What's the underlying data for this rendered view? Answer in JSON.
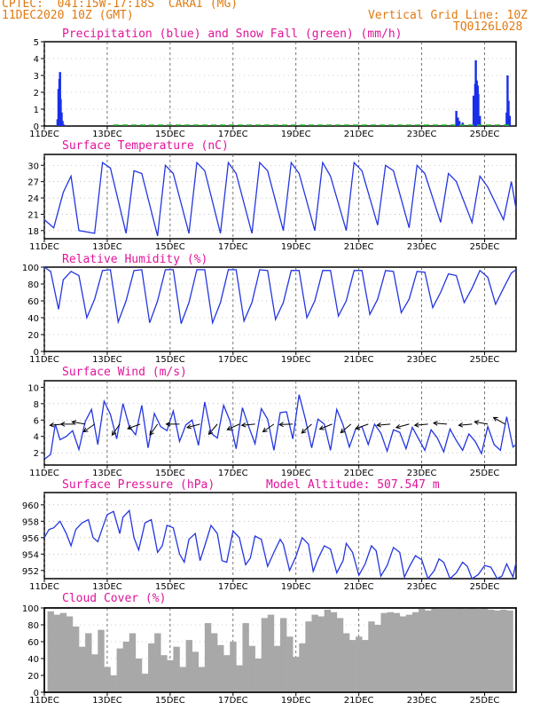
{
  "header": {
    "station": "CPTEC:  041:15W-17:18S  CARAI (MG)",
    "run": "11DEC2020 10Z (GMT)",
    "grid_note": "Vertical Grid Line: 10Z",
    "code": "TQ0126L028"
  },
  "colors": {
    "header": "#e07a10",
    "title": "#e0149a",
    "precip": "#1a2ee8",
    "snow": "#2ab52a",
    "line": "#2436e0",
    "wind_arrow": "#000000",
    "cloud": "#a8a8a8"
  },
  "chart_data": [
    {
      "type": "bar",
      "title": "Precipitation (blue) and Snow Fall (green) (mm/h)",
      "x_ticks": [
        "11DEC",
        "13DEC",
        "15DEC",
        "17DEC",
        "19DEC",
        "21DEC",
        "23DEC",
        "25DEC"
      ],
      "y_ticks": [
        "0",
        "1",
        "2",
        "3",
        "4",
        "5"
      ],
      "ylim": [
        0,
        5
      ],
      "series": [
        {
          "name": "Precipitation",
          "x": [
            11.42,
            11.45,
            11.48,
            11.5,
            11.52,
            11.55,
            11.58,
            11.61,
            24.1,
            24.15,
            24.2,
            24.3,
            24.65,
            24.7,
            24.72,
            24.75,
            24.78,
            24.8,
            24.85,
            25.7,
            25.73,
            25.76,
            25.8
          ],
          "values": [
            0.4,
            2.2,
            2.8,
            3.2,
            1.6,
            0.8,
            0.3,
            0.1,
            0.9,
            0.5,
            0.3,
            0.2,
            1.8,
            2.5,
            3.9,
            2.7,
            2.4,
            1.9,
            0.6,
            0.8,
            3.0,
            1.5,
            0.6
          ]
        },
        {
          "name": "Snow Fall",
          "x": [],
          "values": []
        }
      ]
    },
    {
      "type": "line",
      "title": "Surface Temperature (nC)",
      "x_ticks": [
        "11DEC",
        "13DEC",
        "15DEC",
        "17DEC",
        "19DEC",
        "21DEC",
        "23DEC",
        "25DEC"
      ],
      "y_ticks": [
        "18",
        "21",
        "24",
        "27",
        "30"
      ],
      "ylim": [
        16.5,
        32
      ],
      "x": [
        11.0,
        11.3,
        11.6,
        11.85,
        12.1,
        12.6,
        12.85,
        13.1,
        13.6,
        13.85,
        14.1,
        14.6,
        14.85,
        15.1,
        15.6,
        15.85,
        16.1,
        16.6,
        16.85,
        17.1,
        17.6,
        17.85,
        18.1,
        18.6,
        18.85,
        19.1,
        19.6,
        19.85,
        20.1,
        20.6,
        20.85,
        21.1,
        21.6,
        21.85,
        22.1,
        22.6,
        22.85,
        23.1,
        23.6,
        23.85,
        24.1,
        24.6,
        24.85,
        25.1,
        25.6,
        25.85,
        26.0
      ],
      "values": [
        20.0,
        18.5,
        25.0,
        28.0,
        18.0,
        17.5,
        30.5,
        29.5,
        17.5,
        29.0,
        28.5,
        17.0,
        30.0,
        28.5,
        17.5,
        30.5,
        29.0,
        17.5,
        30.5,
        28.5,
        17.5,
        30.5,
        29.0,
        18.0,
        30.5,
        28.5,
        18.0,
        30.5,
        28.0,
        18.0,
        30.5,
        29.0,
        19.0,
        30.0,
        29.0,
        18.5,
        30.0,
        28.5,
        19.5,
        28.5,
        27.0,
        19.5,
        28.0,
        26.0,
        20.0,
        27.0,
        22.0
      ]
    },
    {
      "type": "line",
      "title": "Relative Humidity (%)",
      "x_ticks": [
        "11DEC",
        "13DEC",
        "15DEC",
        "17DEC",
        "19DEC",
        "21DEC",
        "23DEC",
        "25DEC"
      ],
      "y_ticks": [
        "0",
        "20",
        "40",
        "60",
        "80",
        "100"
      ],
      "ylim": [
        0,
        100
      ],
      "x": [
        11.0,
        11.2,
        11.45,
        11.6,
        11.85,
        12.1,
        12.35,
        12.6,
        12.85,
        13.1,
        13.35,
        13.6,
        13.85,
        14.1,
        14.35,
        14.6,
        14.85,
        15.1,
        15.35,
        15.6,
        15.85,
        16.1,
        16.35,
        16.6,
        16.85,
        17.1,
        17.35,
        17.6,
        17.85,
        18.1,
        18.35,
        18.6,
        18.85,
        19.1,
        19.35,
        19.6,
        19.85,
        20.1,
        20.35,
        20.6,
        20.85,
        21.1,
        21.35,
        21.6,
        21.85,
        22.1,
        22.35,
        22.6,
        22.85,
        23.1,
        23.35,
        23.6,
        23.85,
        24.1,
        24.35,
        24.6,
        24.85,
        25.1,
        25.35,
        25.6,
        25.85,
        26.0
      ],
      "values": [
        100,
        95,
        50,
        85,
        95,
        90,
        40,
        62,
        96,
        97,
        35,
        60,
        96,
        97,
        34,
        60,
        97,
        97,
        33,
        58,
        97,
        97,
        34,
        58,
        97,
        97,
        36,
        58,
        97,
        96,
        38,
        58,
        96,
        96,
        40,
        60,
        96,
        96,
        42,
        60,
        96,
        96,
        44,
        62,
        96,
        95,
        46,
        62,
        95,
        94,
        52,
        70,
        92,
        90,
        58,
        75,
        96,
        88,
        56,
        75,
        93,
        97
      ]
    },
    {
      "type": "line",
      "title": "Surface Wind (m/s)",
      "x_ticks": [
        "11DEC",
        "13DEC",
        "15DEC",
        "17DEC",
        "19DEC",
        "21DEC",
        "23DEC",
        "25DEC"
      ],
      "y_ticks": [
        "2",
        "4",
        "6",
        "8",
        "10"
      ],
      "ylim": [
        0.5,
        10.8
      ],
      "x": [
        11.0,
        11.2,
        11.35,
        11.5,
        11.7,
        11.9,
        12.1,
        12.3,
        12.5,
        12.7,
        12.9,
        13.1,
        13.3,
        13.5,
        13.7,
        13.9,
        14.1,
        14.3,
        14.5,
        14.7,
        14.9,
        15.1,
        15.3,
        15.5,
        15.7,
        15.9,
        16.1,
        16.3,
        16.5,
        16.7,
        16.9,
        17.1,
        17.3,
        17.5,
        17.7,
        17.9,
        18.1,
        18.3,
        18.5,
        18.7,
        18.9,
        19.1,
        19.3,
        19.5,
        19.7,
        19.9,
        20.1,
        20.3,
        20.5,
        20.7,
        20.9,
        21.1,
        21.3,
        21.5,
        21.7,
        21.9,
        22.1,
        22.3,
        22.5,
        22.7,
        22.9,
        23.1,
        23.3,
        23.5,
        23.7,
        23.9,
        24.1,
        24.3,
        24.5,
        24.7,
        24.9,
        25.1,
        25.3,
        25.5,
        25.7,
        25.9,
        26.0
      ],
      "values": [
        1.2,
        1.8,
        5.5,
        3.6,
        4.0,
        4.7,
        2.4,
        5.8,
        7.3,
        3.0,
        8.3,
        6.7,
        3.7,
        8.0,
        5.2,
        4.2,
        7.8,
        2.6,
        6.8,
        5.2,
        4.7,
        7.1,
        3.4,
        5.4,
        6.0,
        2.9,
        8.2,
        4.4,
        3.8,
        7.8,
        5.9,
        2.5,
        7.5,
        5.2,
        3.1,
        7.4,
        6.1,
        2.3,
        6.9,
        7.0,
        3.7,
        9.1,
        6.1,
        2.6,
        6.1,
        5.5,
        2.3,
        7.3,
        5.4,
        2.7,
        4.9,
        5.2,
        3.0,
        5.5,
        4.4,
        2.2,
        4.8,
        4.5,
        2.5,
        5.1,
        3.7,
        2.3,
        4.8,
        3.8,
        2.1,
        4.9,
        3.5,
        2.3,
        4.3,
        3.4,
        1.9,
        5.2,
        3.0,
        2.3,
        6.4,
        2.7,
        3.0
      ],
      "arrows": [
        {
          "x": 11.6,
          "y": 5.5,
          "dir_deg": 265
        },
        {
          "x": 11.95,
          "y": 5.5,
          "dir_deg": 270
        },
        {
          "x": 12.3,
          "y": 5.5,
          "dir_deg": 280
        },
        {
          "x": 12.6,
          "y": 5.5,
          "dir_deg": 235
        },
        {
          "x": 13.4,
          "y": 5.5,
          "dir_deg": 215
        },
        {
          "x": 14.05,
          "y": 5.5,
          "dir_deg": 250
        },
        {
          "x": 14.6,
          "y": 5.5,
          "dir_deg": 215
        },
        {
          "x": 15.3,
          "y": 5.5,
          "dir_deg": 270
        },
        {
          "x": 15.95,
          "y": 5.5,
          "dir_deg": 255
        },
        {
          "x": 16.5,
          "y": 5.5,
          "dir_deg": 220
        },
        {
          "x": 17.2,
          "y": 5.5,
          "dir_deg": 245
        },
        {
          "x": 17.7,
          "y": 5.5,
          "dir_deg": 265
        },
        {
          "x": 18.3,
          "y": 5.5,
          "dir_deg": 235
        },
        {
          "x": 18.9,
          "y": 5.5,
          "dir_deg": 268
        },
        {
          "x": 19.5,
          "y": 5.5,
          "dir_deg": 228
        },
        {
          "x": 20.15,
          "y": 5.5,
          "dir_deg": 248
        },
        {
          "x": 20.75,
          "y": 5.5,
          "dir_deg": 230
        },
        {
          "x": 21.3,
          "y": 5.5,
          "dir_deg": 250
        },
        {
          "x": 22.0,
          "y": 5.5,
          "dir_deg": 265
        },
        {
          "x": 22.6,
          "y": 5.5,
          "dir_deg": 255
        },
        {
          "x": 23.2,
          "y": 5.5,
          "dir_deg": 265
        },
        {
          "x": 23.8,
          "y": 5.5,
          "dir_deg": 275
        },
        {
          "x": 24.6,
          "y": 5.5,
          "dir_deg": 265
        },
        {
          "x": 25.1,
          "y": 5.5,
          "dir_deg": 280
        },
        {
          "x": 25.65,
          "y": 5.5,
          "dir_deg": 300
        }
      ]
    },
    {
      "type": "line",
      "title": "Surface Pressure (hPa)",
      "title2": "Model Altitude: 507.547 m",
      "x_ticks": [
        "11DEC",
        "13DEC",
        "15DEC",
        "17DEC",
        "19DEC",
        "21DEC",
        "23DEC",
        "25DEC"
      ],
      "y_ticks": [
        "952",
        "954",
        "956",
        "958",
        "960"
      ],
      "ylim": [
        951.0,
        961.5
      ],
      "x": [
        11.0,
        11.15,
        11.3,
        11.5,
        11.7,
        11.85,
        12.0,
        12.2,
        12.4,
        12.55,
        12.7,
        12.85,
        13.0,
        13.2,
        13.4,
        13.5,
        13.7,
        13.85,
        14.0,
        14.2,
        14.4,
        14.6,
        14.75,
        14.9,
        15.1,
        15.3,
        15.45,
        15.6,
        15.8,
        15.95,
        16.1,
        16.3,
        16.5,
        16.65,
        16.8,
        17.0,
        17.2,
        17.4,
        17.55,
        17.7,
        17.9,
        18.1,
        18.3,
        18.5,
        18.6,
        18.8,
        19.0,
        19.2,
        19.4,
        19.55,
        19.7,
        19.9,
        20.1,
        20.3,
        20.5,
        20.6,
        20.8,
        21.0,
        21.2,
        21.4,
        21.55,
        21.7,
        21.9,
        22.1,
        22.3,
        22.45,
        22.6,
        22.8,
        23.0,
        23.2,
        23.4,
        23.55,
        23.7,
        23.9,
        24.1,
        24.3,
        24.45,
        24.6,
        24.8,
        25.0,
        25.2,
        25.4,
        25.55,
        25.7,
        25.9,
        26.0
      ],
      "values": [
        956.0,
        957.0,
        957.2,
        958.0,
        956.5,
        955.0,
        957.0,
        957.8,
        958.2,
        956.0,
        955.5,
        957.2,
        958.8,
        959.2,
        956.5,
        958.5,
        959.3,
        956.0,
        954.5,
        957.8,
        958.2,
        954.2,
        955.0,
        957.5,
        957.2,
        954.0,
        953.0,
        955.8,
        956.5,
        953.2,
        955.0,
        957.5,
        956.5,
        953.2,
        953.0,
        956.8,
        956.0,
        952.7,
        953.5,
        956.2,
        955.8,
        952.5,
        954.2,
        955.8,
        955.2,
        952.0,
        953.7,
        956.0,
        955.2,
        951.9,
        953.4,
        955.0,
        954.6,
        951.7,
        953.2,
        955.3,
        954.2,
        951.4,
        952.8,
        955.0,
        954.4,
        951.3,
        952.6,
        954.8,
        954.2,
        951.2,
        952.4,
        953.8,
        953.3,
        951.0,
        952.0,
        953.4,
        953.0,
        951.0,
        951.7,
        953.0,
        952.5,
        951.0,
        951.5,
        952.6,
        952.4,
        951.0,
        951.3,
        952.8,
        951.2,
        953.0
      ]
    },
    {
      "type": "bar",
      "title": "Cloud Cover (%)",
      "x_ticks": [
        "11DEC",
        "13DEC",
        "15DEC",
        "17DEC",
        "19DEC",
        "21DEC",
        "23DEC",
        "25DEC"
      ],
      "y_ticks": [
        "0",
        "20",
        "40",
        "60",
        "80",
        "100"
      ],
      "ylim": [
        0,
        100
      ],
      "x": [
        11.2,
        11.4,
        11.6,
        11.8,
        12.0,
        12.2,
        12.4,
        12.6,
        12.8,
        13.0,
        13.2,
        13.4,
        13.6,
        13.8,
        14.0,
        14.2,
        14.4,
        14.6,
        14.8,
        15.0,
        15.2,
        15.4,
        15.6,
        15.8,
        16.0,
        16.2,
        16.4,
        16.6,
        16.8,
        17.0,
        17.2,
        17.4,
        17.6,
        17.8,
        18.0,
        18.2,
        18.4,
        18.6,
        18.8,
        19.0,
        19.2,
        19.4,
        19.6,
        19.8,
        20.0,
        20.2,
        20.4,
        20.6,
        20.8,
        21.0,
        21.2,
        21.4,
        21.6,
        21.8,
        22.0,
        22.2,
        22.4,
        22.6,
        22.8,
        23.0,
        23.2,
        23.4,
        23.6,
        23.8,
        24.0,
        24.2,
        24.4,
        24.6,
        24.8,
        25.0,
        25.2,
        25.4,
        25.6,
        25.8
      ],
      "values": [
        96,
        92,
        94,
        90,
        78,
        54,
        70,
        45,
        74,
        30,
        20,
        52,
        60,
        70,
        40,
        22,
        58,
        70,
        44,
        38,
        54,
        30,
        62,
        48,
        30,
        82,
        70,
        56,
        44,
        60,
        32,
        82,
        55,
        40,
        88,
        92,
        55,
        88,
        66,
        42,
        58,
        84,
        92,
        90,
        98,
        95,
        88,
        70,
        62,
        66,
        62,
        84,
        80,
        94,
        95,
        94,
        90,
        92,
        95,
        100,
        97,
        99,
        100,
        100,
        100,
        99,
        100,
        99,
        100,
        99,
        98,
        97,
        98,
        97
      ]
    }
  ]
}
